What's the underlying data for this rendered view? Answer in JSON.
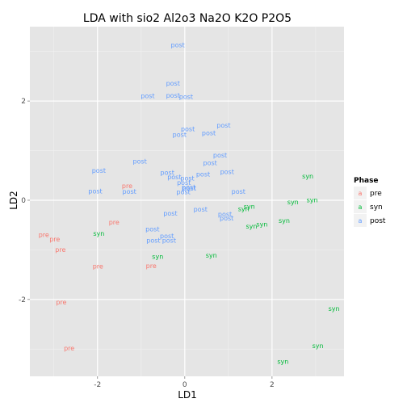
{
  "chart_data": {
    "type": "scatter",
    "title": "LDA with sio2 Al2o3 Na2O K2O P2O5",
    "xlabel": "LD1",
    "ylabel": "LD2",
    "xlim": [
      -3.55,
      3.65
    ],
    "ylim": [
      -3.55,
      3.5
    ],
    "xticks": [
      -2,
      0,
      2
    ],
    "yticks": [
      -2,
      0,
      2
    ],
    "grid": true,
    "legend": {
      "title": "Phase",
      "placement": "right",
      "glyph": "a",
      "items": [
        {
          "name": "pre",
          "color": "#f8766d"
        },
        {
          "name": "syn",
          "color": "#00ba38"
        },
        {
          "name": "post",
          "color": "#619cff"
        }
      ]
    },
    "series": [
      {
        "name": "pre",
        "color": "#f8766d",
        "points": [
          {
            "x": -1.32,
            "y": 0.29
          },
          {
            "x": -1.62,
            "y": -0.44
          },
          {
            "x": -3.23,
            "y": -0.69
          },
          {
            "x": -2.98,
            "y": -0.78
          },
          {
            "x": -2.85,
            "y": -0.99
          },
          {
            "x": -1.99,
            "y": -1.33
          },
          {
            "x": -0.77,
            "y": -1.32
          },
          {
            "x": -2.83,
            "y": -2.05
          },
          {
            "x": -2.65,
            "y": -2.98
          }
        ]
      },
      {
        "name": "syn",
        "color": "#00ba38",
        "points": [
          {
            "x": 2.82,
            "y": 0.49
          },
          {
            "x": 2.92,
            "y": 0.01
          },
          {
            "x": 2.48,
            "y": -0.03
          },
          {
            "x": 1.48,
            "y": -0.12
          },
          {
            "x": 1.35,
            "y": -0.17
          },
          {
            "x": 2.28,
            "y": -0.41
          },
          {
            "x": 1.77,
            "y": -0.48
          },
          {
            "x": 1.53,
            "y": -0.52
          },
          {
            "x": -1.97,
            "y": -0.67
          },
          {
            "x": -0.62,
            "y": -1.13
          },
          {
            "x": 0.61,
            "y": -1.11
          },
          {
            "x": 3.42,
            "y": -2.18
          },
          {
            "x": 3.05,
            "y": -2.93
          },
          {
            "x": 2.25,
            "y": -3.25
          }
        ]
      },
      {
        "name": "post",
        "color": "#619cff",
        "points": [
          {
            "x": -0.16,
            "y": 3.13
          },
          {
            "x": -0.27,
            "y": 2.36
          },
          {
            "x": -0.85,
            "y": 2.11
          },
          {
            "x": -0.27,
            "y": 2.12
          },
          {
            "x": 0.03,
            "y": 2.09
          },
          {
            "x": 0.89,
            "y": 1.51
          },
          {
            "x": 0.07,
            "y": 1.44
          },
          {
            "x": 0.55,
            "y": 1.36
          },
          {
            "x": -0.12,
            "y": 1.33
          },
          {
            "x": 0.81,
            "y": 0.91
          },
          {
            "x": -1.03,
            "y": 0.79
          },
          {
            "x": 0.58,
            "y": 0.76
          },
          {
            "x": -1.97,
            "y": 0.6
          },
          {
            "x": -0.4,
            "y": 0.56
          },
          {
            "x": 0.97,
            "y": 0.58
          },
          {
            "x": -0.24,
            "y": 0.47
          },
          {
            "x": 0.06,
            "y": 0.45
          },
          {
            "x": 0.42,
            "y": 0.53
          },
          {
            "x": -0.02,
            "y": 0.36
          },
          {
            "x": 0.09,
            "y": 0.27
          },
          {
            "x": 0.1,
            "y": 0.24
          },
          {
            "x": -2.05,
            "y": 0.19
          },
          {
            "x": -1.27,
            "y": 0.18
          },
          {
            "x": -0.03,
            "y": 0.17
          },
          {
            "x": 1.23,
            "y": 0.18
          },
          {
            "x": 0.36,
            "y": -0.18
          },
          {
            "x": -0.33,
            "y": -0.26
          },
          {
            "x": 0.92,
            "y": -0.28
          },
          {
            "x": 0.96,
            "y": -0.36
          },
          {
            "x": -0.74,
            "y": -0.58
          },
          {
            "x": -0.41,
            "y": -0.72
          },
          {
            "x": -0.72,
            "y": -0.81
          },
          {
            "x": -0.36,
            "y": -0.81
          }
        ]
      }
    ]
  }
}
